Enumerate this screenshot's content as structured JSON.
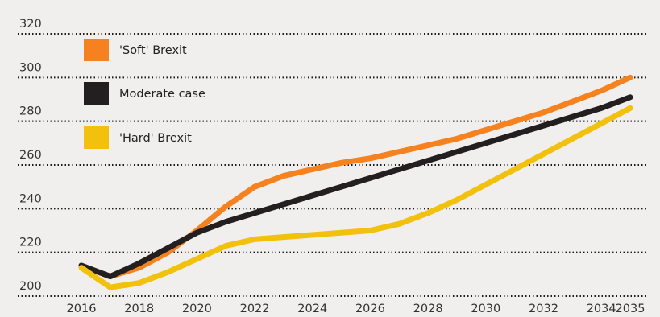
{
  "chart_data": {
    "type": "line",
    "title": "",
    "xlabel": "",
    "ylabel": "",
    "ylim": [
      200,
      320
    ],
    "xlim": [
      2016,
      2035
    ],
    "yticks": [
      200,
      220,
      240,
      260,
      280,
      300,
      320
    ],
    "xticks": [
      "2016",
      "2018",
      "2020",
      "2022",
      "2024",
      "2026",
      "2028",
      "2030",
      "2032",
      "2034",
      "2035"
    ],
    "grid": "horizontal dotted",
    "legend_position": "top-left",
    "x": [
      2016,
      2017,
      2018,
      2019,
      2020,
      2021,
      2022,
      2023,
      2024,
      2025,
      2026,
      2027,
      2028,
      2029,
      2030,
      2031,
      2032,
      2033,
      2034,
      2035
    ],
    "series": [
      {
        "name": "'Soft' Brexit",
        "color": "#f5821f",
        "values": [
          214,
          209,
          213,
          220,
          230,
          241,
          250,
          255,
          258,
          261,
          263,
          266,
          269,
          272,
          276,
          280,
          284,
          289,
          294,
          300
        ]
      },
      {
        "name": "Moderate case",
        "color": "#231f20",
        "values": [
          214,
          209,
          215,
          222,
          229,
          234,
          238,
          242,
          246,
          250,
          254,
          258,
          262,
          266,
          270,
          274,
          278,
          282,
          286,
          291
        ]
      },
      {
        "name": "'Hard' Brexit",
        "color": "#f2c10e",
        "values": [
          213,
          204,
          206,
          211,
          217,
          223,
          226,
          227,
          228,
          229,
          230,
          233,
          238,
          244,
          251,
          258,
          265,
          272,
          279,
          286
        ]
      }
    ]
  }
}
